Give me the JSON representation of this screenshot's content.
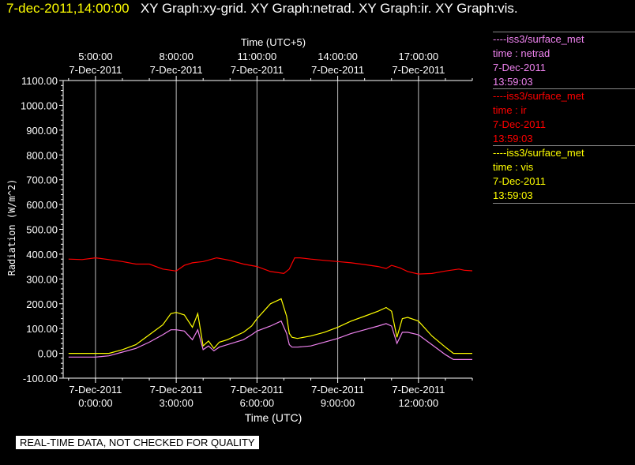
{
  "header": {
    "timestamp": "7-dec-2011,14:00:00",
    "title": "XY Graph:xy-grid.  XY Graph:netrad.  XY Graph:ir.  XY Graph:vis."
  },
  "disclaimer": "REAL-TIME DATA, NOT CHECKED FOR QUALITY",
  "legend": [
    {
      "source": "----iss3/surface_met",
      "var": "time : netrad",
      "date": "7-Dec-2011",
      "time": "13:59:03",
      "color": "#ee82ee"
    },
    {
      "source": "----iss3/surface_met",
      "var": "time : ir",
      "date": "7-Dec-2011",
      "time": "13:59:03",
      "color": "#ff0000"
    },
    {
      "source": "----iss3/surface_met",
      "var": "time : vis",
      "date": "7-Dec-2011",
      "time": "13:59:03",
      "color": "#ffff00"
    }
  ],
  "chart_data": {
    "type": "line",
    "xlabel": "Time (UTC)",
    "x2label": "Time (UTC+5)",
    "ylabel": "Radiation (W/m^2)",
    "xlim": [
      -1.2,
      14.0
    ],
    "ylim": [
      -100,
      1100
    ],
    "yticks": [
      -100,
      0,
      100,
      200,
      300,
      400,
      500,
      600,
      700,
      800,
      900,
      1000,
      1100
    ],
    "ytick_labels": [
      "-100.00",
      "0.00",
      "100.00",
      "200.00",
      "300.00",
      "400.00",
      "500.00",
      "600.00",
      "700.00",
      "800.00",
      "900.00",
      "1000.00",
      "1100.00"
    ],
    "xticks": [
      {
        "value": 0,
        "date": "7-Dec-2011",
        "time": "0:00:00"
      },
      {
        "value": 3,
        "date": "7-Dec-2011",
        "time": "3:00:00"
      },
      {
        "value": 6,
        "date": "7-Dec-2011",
        "time": "6:00:00"
      },
      {
        "value": 9,
        "date": "7-Dec-2011",
        "time": "9:00:00"
      },
      {
        "value": 12,
        "date": "7-Dec-2011",
        "time": "12:00:00"
      }
    ],
    "x2ticks": [
      {
        "value": 0,
        "date": "7-Dec-2011",
        "time": "5:00:00"
      },
      {
        "value": 3,
        "date": "7-Dec-2011",
        "time": "8:00:00"
      },
      {
        "value": 6,
        "date": "7-Dec-2011",
        "time": "11:00:00"
      },
      {
        "value": 9,
        "date": "7-Dec-2011",
        "time": "14:00:00"
      },
      {
        "value": 12,
        "date": "7-Dec-2011",
        "time": "17:00:00"
      }
    ],
    "grid_x": true,
    "series": [
      {
        "name": "ir",
        "color": "#ff0000",
        "x": [
          -1.0,
          -0.5,
          0.0,
          0.5,
          1.0,
          1.5,
          2.0,
          2.5,
          3.0,
          3.3,
          3.6,
          4.0,
          4.5,
          5.0,
          5.5,
          6.0,
          6.5,
          7.0,
          7.2,
          7.4,
          7.6,
          8.0,
          8.5,
          9.0,
          9.5,
          10.0,
          10.5,
          10.8,
          11.0,
          11.3,
          11.6,
          12.0,
          12.5,
          13.0,
          13.5,
          13.7,
          14.0
        ],
        "values": [
          380,
          378,
          385,
          378,
          370,
          360,
          360,
          340,
          332,
          355,
          365,
          370,
          385,
          375,
          360,
          350,
          330,
          322,
          340,
          385,
          385,
          380,
          375,
          370,
          365,
          358,
          350,
          342,
          355,
          345,
          330,
          320,
          322,
          332,
          340,
          335,
          333
        ]
      },
      {
        "name": "vis",
        "color": "#ffff00",
        "x": [
          -1.0,
          0.0,
          0.5,
          1.0,
          1.5,
          2.0,
          2.5,
          2.8,
          3.0,
          3.3,
          3.6,
          3.8,
          4.0,
          4.2,
          4.4,
          4.6,
          4.9,
          5.2,
          5.5,
          5.8,
          6.0,
          6.5,
          6.9,
          7.1,
          7.2,
          7.3,
          7.5,
          8.0,
          8.5,
          9.0,
          9.5,
          10.0,
          10.5,
          10.8,
          11.0,
          11.2,
          11.4,
          11.6,
          12.0,
          12.5,
          13.0,
          13.3,
          14.0
        ],
        "values": [
          0,
          0,
          0,
          15,
          35,
          75,
          115,
          160,
          165,
          155,
          105,
          160,
          30,
          50,
          20,
          45,
          55,
          70,
          85,
          110,
          140,
          200,
          220,
          150,
          80,
          65,
          60,
          70,
          85,
          105,
          130,
          150,
          170,
          185,
          170,
          65,
          140,
          145,
          130,
          70,
          25,
          0,
          0
        ]
      },
      {
        "name": "netrad",
        "color": "#ee82ee",
        "x": [
          -1.0,
          0.0,
          0.5,
          1.0,
          1.5,
          2.0,
          2.5,
          2.8,
          3.0,
          3.3,
          3.6,
          3.8,
          4.0,
          4.2,
          4.4,
          4.6,
          4.9,
          5.2,
          5.5,
          5.8,
          6.0,
          6.5,
          6.9,
          7.1,
          7.2,
          7.3,
          7.5,
          8.0,
          8.5,
          9.0,
          9.5,
          10.0,
          10.5,
          10.8,
          11.0,
          11.2,
          11.4,
          11.6,
          12.0,
          12.5,
          13.0,
          13.3,
          14.0
        ],
        "values": [
          -15,
          -15,
          -10,
          5,
          20,
          45,
          75,
          95,
          95,
          90,
          55,
          95,
          15,
          30,
          10,
          25,
          35,
          45,
          55,
          75,
          90,
          110,
          130,
          80,
          35,
          25,
          25,
          30,
          45,
          60,
          80,
          95,
          110,
          120,
          110,
          40,
          85,
          85,
          75,
          35,
          -5,
          -25,
          -25
        ]
      }
    ]
  }
}
